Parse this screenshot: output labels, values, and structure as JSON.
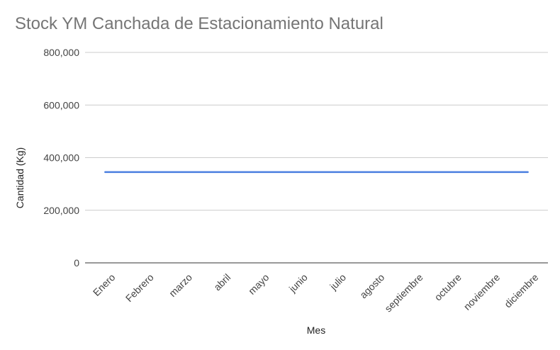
{
  "chart_data": {
    "type": "line",
    "title": "Stock YM Canchada de Estacionamiento Natural",
    "xlabel": "Mes",
    "ylabel": "Cantidad (Kg)",
    "ylim": [
      0,
      800000
    ],
    "yticks": [
      0,
      200000,
      400000,
      600000,
      800000
    ],
    "ytick_labels": [
      "0",
      "200,000",
      "400,000",
      "600,000",
      "800,000"
    ],
    "grid": true,
    "legend": "none",
    "categories": [
      "Enero",
      "Febrero",
      "marzo",
      "abril",
      "mayo",
      "junio",
      "julio",
      "agosto",
      "septiembre",
      "octubre",
      "noviembre",
      "diciembre"
    ],
    "series": [
      {
        "values": [
          345000,
          345000,
          345000,
          345000,
          345000,
          345000,
          345000,
          345000,
          345000,
          345000,
          345000,
          345000
        ],
        "color": "#4a7fe0"
      }
    ]
  }
}
